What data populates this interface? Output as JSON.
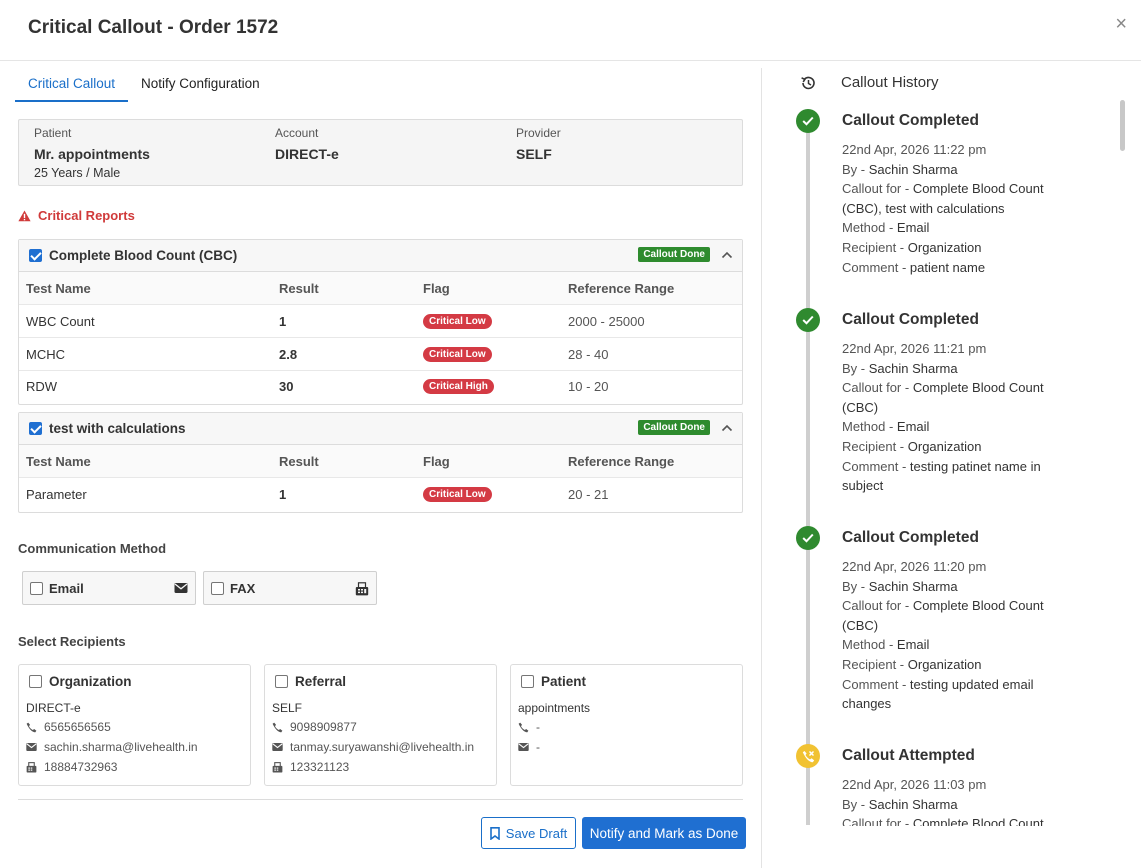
{
  "modal": {
    "title": "Critical Callout - Order 1572",
    "close": "×"
  },
  "tabs": [
    {
      "label": "Critical Callout",
      "active": true
    },
    {
      "label": "Notify Configuration",
      "active": false
    }
  ],
  "patient": {
    "patient_label": "Patient",
    "patient_name": "Mr. appointments",
    "patient_sub": "25 Years / Male",
    "account_label": "Account",
    "account_value": "DIRECT-e",
    "provider_label": "Provider",
    "provider_value": "SELF"
  },
  "critical_reports_title": "Critical Reports",
  "colors": {
    "accent": "#1f6fd1",
    "critical": "#d43a44",
    "success": "#2e8b2e",
    "warning": "#f1c232"
  },
  "reports": [
    {
      "name": "Complete Blood Count (CBC)",
      "checked": true,
      "badge": "Callout Done",
      "headers": [
        "Test Name",
        "Result",
        "Flag",
        "Reference Range"
      ],
      "rows": [
        {
          "test": "WBC Count",
          "result": "1",
          "flag": "Critical Low",
          "range": "2000 - 25000"
        },
        {
          "test": "MCHC",
          "result": "2.8",
          "flag": "Critical Low",
          "range": "28 - 40"
        },
        {
          "test": "RDW",
          "result": "30",
          "flag": "Critical High",
          "range": "10 - 20"
        }
      ]
    },
    {
      "name": "test with calculations",
      "checked": true,
      "badge": "Callout Done",
      "headers": [
        "Test Name",
        "Result",
        "Flag",
        "Reference Range"
      ],
      "rows": [
        {
          "test": "Parameter",
          "result": "1",
          "flag": "Critical Low",
          "range": "20 - 21"
        }
      ]
    }
  ],
  "communication": {
    "label": "Communication Method",
    "methods": [
      {
        "label": "Email",
        "icon": "envelope-icon",
        "checked": false
      },
      {
        "label": "FAX",
        "icon": "fax-icon",
        "checked": false
      }
    ]
  },
  "recipients": {
    "label": "Select Recipients",
    "items": [
      {
        "label": "Organization",
        "sub": "DIRECT-e",
        "phone": "6565656565",
        "email": "sachin.sharma@livehealth.in",
        "fax": "18884732963"
      },
      {
        "label": "Referral",
        "sub": "SELF",
        "phone": "9098909877",
        "email": "tanmay.suryawanshi@livehealth.in",
        "fax": "123321123"
      },
      {
        "label": "Patient",
        "sub": "appointments",
        "phone": "-",
        "email": "-"
      }
    ]
  },
  "buttons": {
    "save_draft": "Save Draft",
    "notify": "Notify and Mark as Done"
  },
  "history": {
    "title": "Callout History",
    "entries": [
      {
        "status": "Callout Completed",
        "time": "22nd Apr, 2026 11:22 pm",
        "by_k": "By - ",
        "by": "Sachin Sharma",
        "for_k": "Callout for - ",
        "for": "Complete Blood Count (CBC), test with calculations",
        "method_k": "Method - ",
        "method": "Email",
        "recipient_k": "Recipient - ",
        "recipient": "Organization",
        "comment_k": "Comment - ",
        "comment": "patient name"
      },
      {
        "status": "Callout Completed",
        "time": "22nd Apr, 2026 11:21 pm",
        "by_k": "By - ",
        "by": "Sachin Sharma",
        "for_k": "Callout for - ",
        "for": "Complete Blood Count (CBC)",
        "method_k": "Method - ",
        "method": "Email",
        "recipient_k": "Recipient - ",
        "recipient": "Organization",
        "comment_k": "Comment - ",
        "comment": "testing patinet name in subject"
      },
      {
        "status": "Callout Completed",
        "time": "22nd Apr, 2026 11:20 pm",
        "by_k": "By - ",
        "by": "Sachin Sharma",
        "for_k": "Callout for - ",
        "for": "Complete Blood Count (CBC)",
        "method_k": "Method - ",
        "method": "Email",
        "recipient_k": "Recipient - ",
        "recipient": "Organization",
        "comment_k": "Comment - ",
        "comment": "testing updated email changes"
      },
      {
        "status": "Callout Attempted",
        "time": "22nd Apr, 2026 11:03 pm",
        "by_k": "By - ",
        "by": "Sachin Sharma",
        "for_k": "Callout for - ",
        "for": "Complete Blood Count"
      }
    ]
  }
}
